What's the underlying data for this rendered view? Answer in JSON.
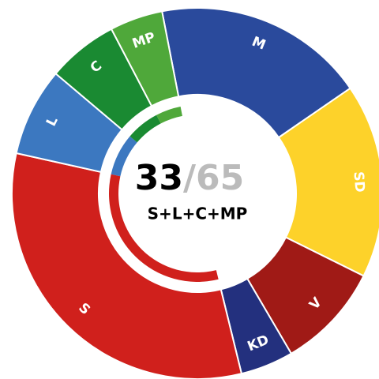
{
  "chart_data": {
    "type": "donut",
    "categories": [
      "M",
      "SD",
      "V",
      "KD",
      "S",
      "L",
      "C",
      "MP"
    ],
    "values": [
      12,
      11,
      6,
      3,
      21,
      5,
      4,
      3
    ],
    "colors": [
      "#2a4a9c",
      "#fdd22a",
      "#a01a16",
      "#23307e",
      "#d0201c",
      "#3c78c0",
      "#1a8a32",
      "#4fa83a"
    ],
    "center_value": "33",
    "center_total": "/65",
    "center_label": "S+L+C+MP",
    "highlight": [
      4,
      5,
      6,
      7
    ]
  }
}
